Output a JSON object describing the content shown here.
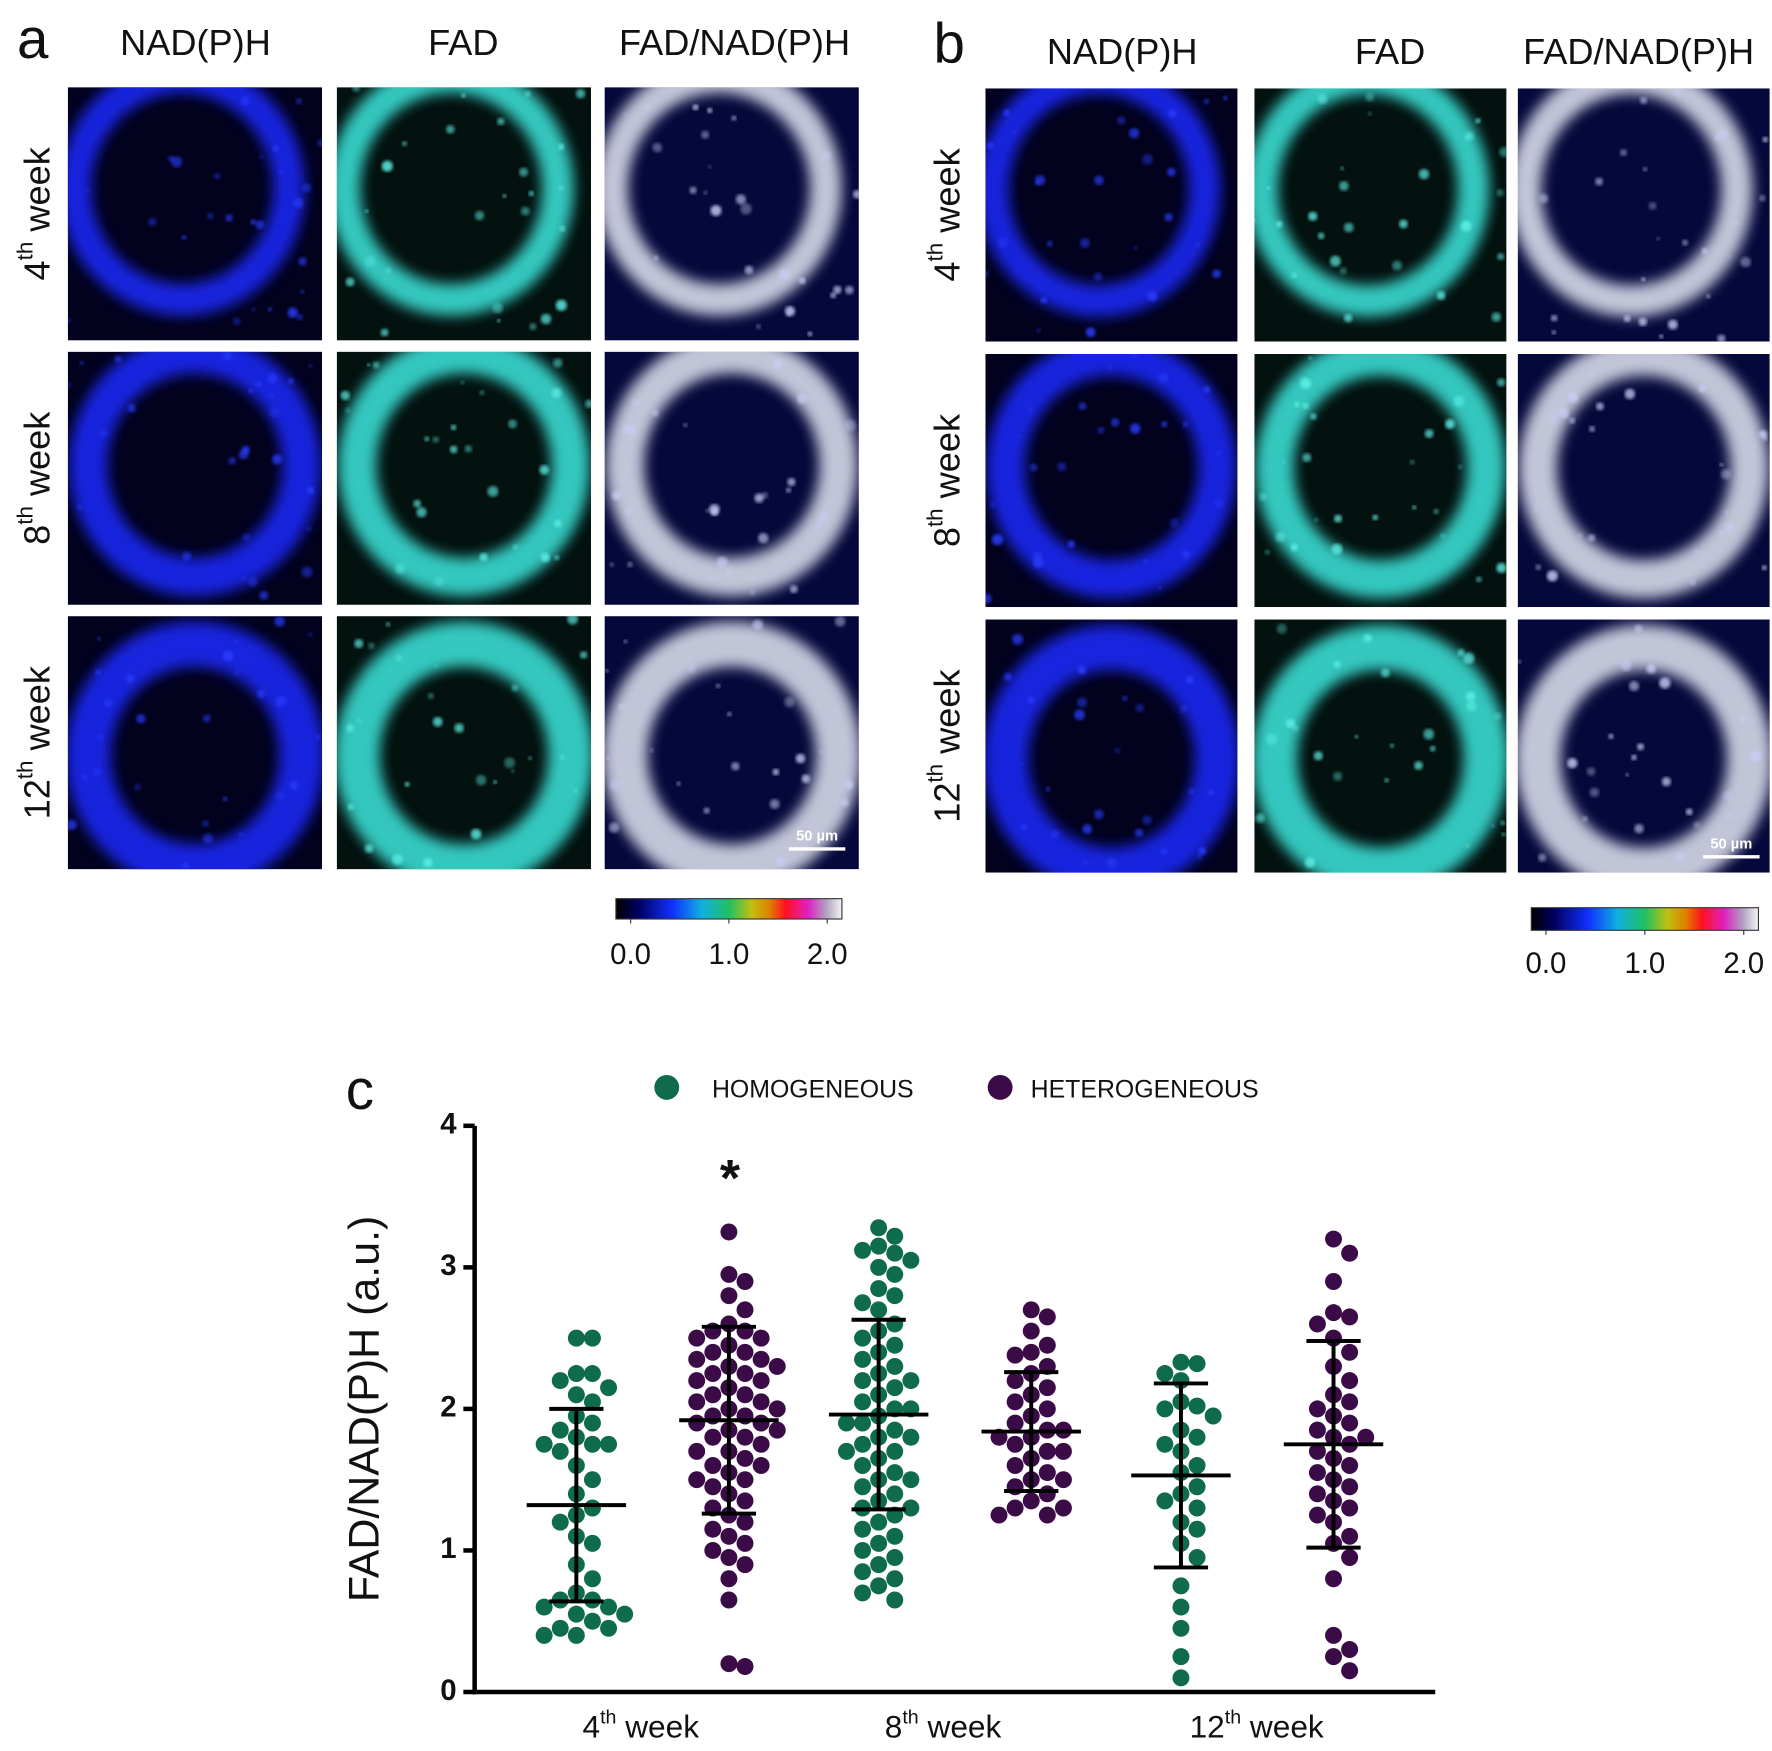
{
  "panels": {
    "a": {
      "label": "a",
      "columns": [
        "NAD(P)H",
        "FAD",
        "FAD/NAD(P)H"
      ],
      "rows": [
        "4th week",
        "8th week",
        "12th week"
      ],
      "scale_bar": "50 µm",
      "colorbar": {
        "range": [
          0,
          2
        ],
        "ticks": [
          {
            "value": 0,
            "label": "0.0"
          },
          {
            "value": 1,
            "label": "1.0"
          },
          {
            "value": 2,
            "label": "2.0"
          }
        ]
      }
    },
    "b": {
      "label": "b",
      "columns": [
        "NAD(P)H",
        "FAD",
        "FAD/NAD(P)H"
      ],
      "rows": [
        "4th week",
        "8th week",
        "12th week"
      ],
      "scale_bar": "50 µm",
      "colorbar": {
        "range": [
          0,
          2
        ],
        "ticks": [
          {
            "value": 0,
            "label": "0.0"
          },
          {
            "value": 1,
            "label": "1.0"
          },
          {
            "value": 2,
            "label": "2.0"
          }
        ]
      }
    }
  },
  "chart_data": {
    "type": "dotplot",
    "panel_label": "c",
    "y_label": "FAD/NAD(P)H (a.u.)",
    "categories": [
      "4th week",
      "8th week",
      "12th week"
    ],
    "ylim": [
      0,
      4
    ],
    "yticks": [
      0,
      1,
      2,
      3,
      4
    ],
    "annotation": "*",
    "series": [
      {
        "name": "HOMOGENEOUS",
        "color": "#0e6b4c",
        "values": [
          [
            2.5,
            2.5,
            2.25,
            2.25,
            2.2,
            2.15,
            2.1,
            2.05,
            1.95,
            1.9,
            1.85,
            1.8,
            1.75,
            1.75,
            1.75,
            1.7,
            1.6,
            1.5,
            1.4,
            1.3,
            1.25,
            1.2,
            1.1,
            1.05,
            0.9,
            0.8,
            0.7,
            0.65,
            0.65,
            0.6,
            0.6,
            0.55,
            0.55,
            0.5,
            0.45,
            0.45,
            0.4,
            0.4
          ],
          [
            3.28,
            3.22,
            3.15,
            3.12,
            3.1,
            3.05,
            3.0,
            2.95,
            2.85,
            2.8,
            2.75,
            2.7,
            2.6,
            2.55,
            2.5,
            2.45,
            2.4,
            2.35,
            2.3,
            2.25,
            2.2,
            2.2,
            2.15,
            2.1,
            2.05,
            2.0,
            2.0,
            1.95,
            1.9,
            1.9,
            1.85,
            1.8,
            1.8,
            1.75,
            1.7,
            1.7,
            1.65,
            1.6,
            1.55,
            1.5,
            1.5,
            1.45,
            1.4,
            1.35,
            1.3,
            1.3,
            1.25,
            1.2,
            1.15,
            1.1,
            1.05,
            1.0,
            0.95,
            0.9,
            0.85,
            0.8,
            0.75,
            0.7,
            0.65
          ],
          [
            2.33,
            2.32,
            2.25,
            2.2,
            2.05,
            2.02,
            2.0,
            1.95,
            1.85,
            1.8,
            1.75,
            1.7,
            1.6,
            1.55,
            1.45,
            1.4,
            1.35,
            1.3,
            1.2,
            1.15,
            1.05,
            0.95,
            0.75,
            0.6,
            0.45,
            0.25,
            0.1
          ]
        ],
        "mean": [
          1.32,
          1.96,
          1.53
        ],
        "sd": [
          0.68,
          0.67,
          0.65
        ]
      },
      {
        "name": "HETEROGENEOUS",
        "color": "#3b0b48",
        "values": [
          [
            3.25,
            2.95,
            2.9,
            2.8,
            2.7,
            2.6,
            2.55,
            2.55,
            2.5,
            2.5,
            2.45,
            2.4,
            2.4,
            2.35,
            2.35,
            2.3,
            2.3,
            2.25,
            2.25,
            2.2,
            2.2,
            2.15,
            2.1,
            2.1,
            2.05,
            2.05,
            2.0,
            2.0,
            1.95,
            1.95,
            1.9,
            1.9,
            1.85,
            1.85,
            1.8,
            1.8,
            1.75,
            1.7,
            1.7,
            1.65,
            1.6,
            1.6,
            1.55,
            1.5,
            1.5,
            1.45,
            1.4,
            1.35,
            1.3,
            1.25,
            1.2,
            1.15,
            1.1,
            1.05,
            1.0,
            0.95,
            0.9,
            0.8,
            0.65,
            0.2,
            0.18
          ],
          [
            2.7,
            2.65,
            2.55,
            2.45,
            2.4,
            2.38,
            2.3,
            2.25,
            2.2,
            2.15,
            2.1,
            2.05,
            2.0,
            1.95,
            1.9,
            1.85,
            1.85,
            1.8,
            1.8,
            1.75,
            1.7,
            1.7,
            1.65,
            1.6,
            1.55,
            1.5,
            1.5,
            1.45,
            1.4,
            1.35,
            1.3,
            1.3,
            1.25,
            1.25
          ],
          [
            3.2,
            3.1,
            2.9,
            2.68,
            2.65,
            2.6,
            2.5,
            2.4,
            2.3,
            2.2,
            2.1,
            2.05,
            2.0,
            1.95,
            1.9,
            1.85,
            1.8,
            1.8,
            1.75,
            1.7,
            1.65,
            1.6,
            1.55,
            1.5,
            1.45,
            1.4,
            1.35,
            1.3,
            1.25,
            1.2,
            1.1,
            1.05,
            0.95,
            0.8,
            0.4,
            0.3,
            0.25,
            0.15
          ]
        ],
        "mean": [
          1.92,
          1.84,
          1.75
        ],
        "sd": [
          0.66,
          0.42,
          0.73
        ]
      }
    ]
  }
}
